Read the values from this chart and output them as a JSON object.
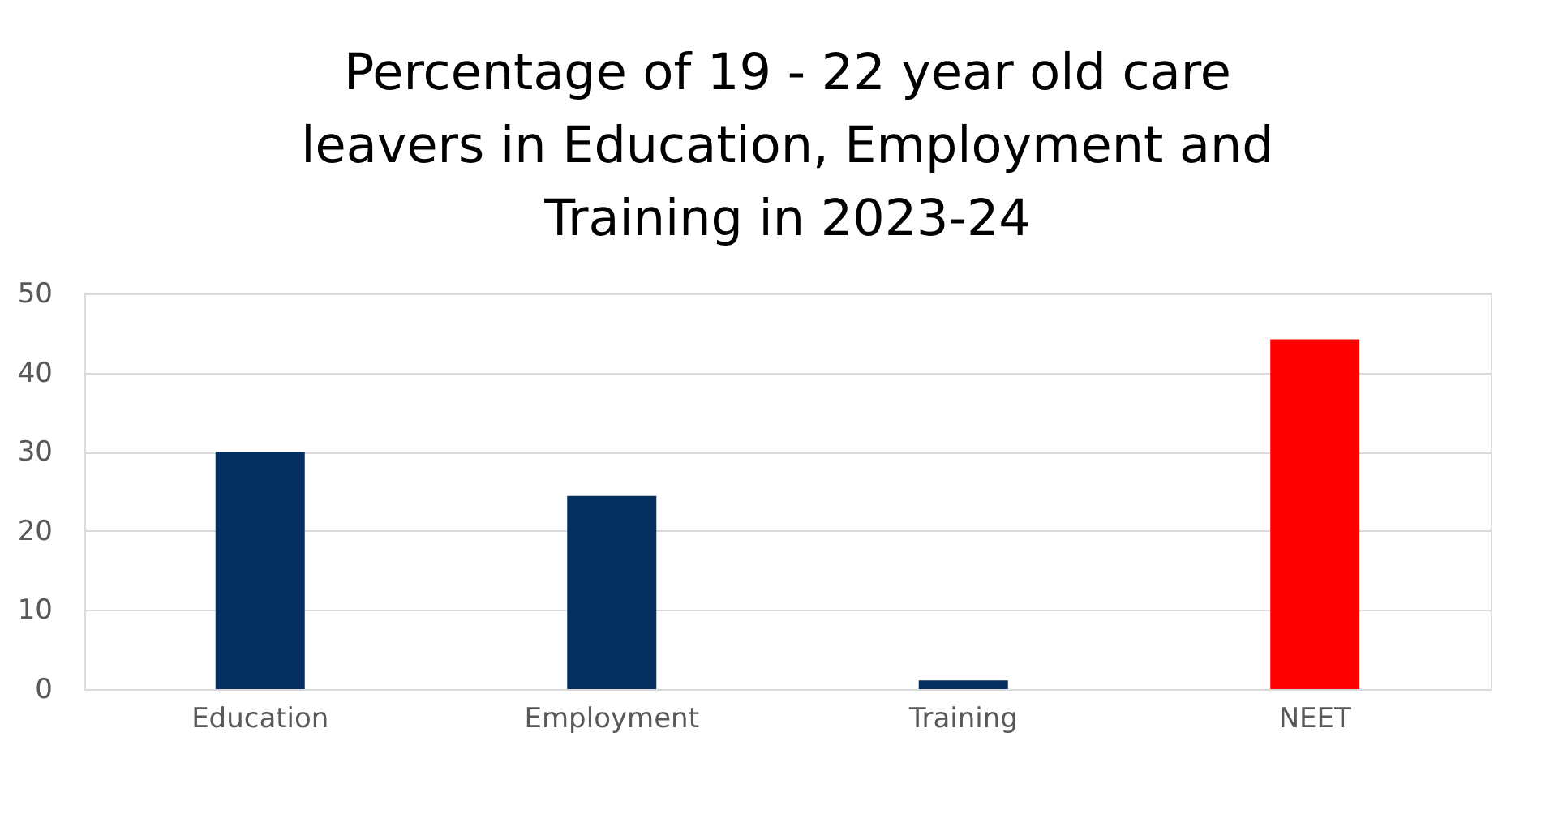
{
  "chart_data": {
    "type": "bar",
    "title": "Percentage of 19 - 22 year old care leavers in Education, Employment and Training in 2023-24",
    "categories": [
      "Education",
      "Employment",
      "Training",
      "NEET"
    ],
    "values": [
      30,
      24.4,
      1.1,
      44.2
    ],
    "colors": [
      "#052f5f",
      "#052f5f",
      "#052f5f",
      "#ff0000"
    ],
    "ylim": [
      0,
      50
    ],
    "yticks": [
      0,
      10,
      20,
      30,
      40,
      50
    ],
    "grid": "y"
  }
}
